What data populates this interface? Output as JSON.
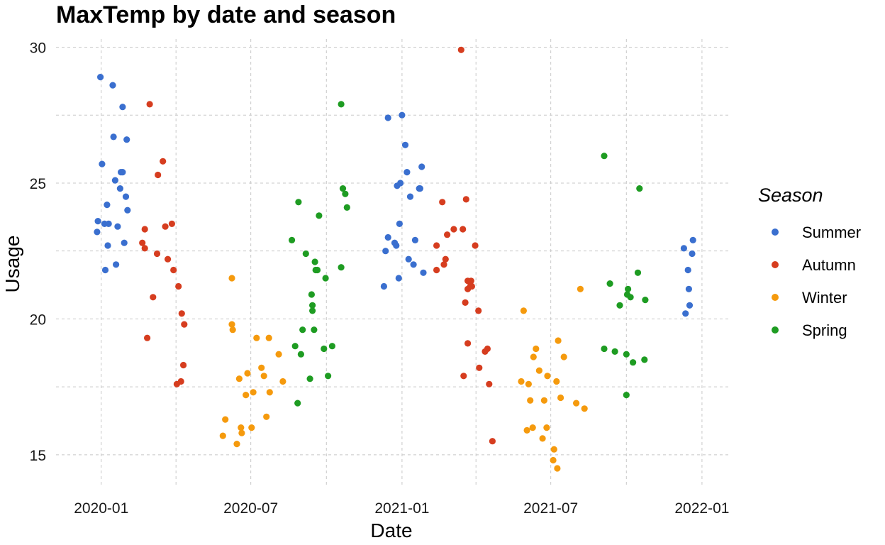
{
  "chart_data": {
    "type": "scatter",
    "title": "MaxTemp by date and season",
    "xlabel": "Date",
    "ylabel": "Usage",
    "x_type": "date",
    "xlim": [
      "2019-11-07",
      "2022-02-02"
    ],
    "ylim": [
      13.9,
      30.3
    ],
    "x_ticks": [
      "2020-01-01",
      "2020-07-01",
      "2021-01-01",
      "2021-07-01",
      "2022-01-01"
    ],
    "x_tick_labels": [
      "2020-01",
      "2020-07",
      "2021-01",
      "2021-07",
      "2022-01"
    ],
    "x_minor_ticks": [
      "2019-10-01",
      "2020-04-01",
      "2020-10-01",
      "2021-04-01",
      "2021-10-01"
    ],
    "y_ticks": [
      15,
      20,
      25,
      30
    ],
    "y_minor_ticks": [
      17.5,
      22.5,
      27.5
    ],
    "grid": true,
    "legend": {
      "title": "Season",
      "position": "right"
    },
    "series": [
      {
        "name": "Summer",
        "color": "#3a6fcf",
        "points": [
          [
            "2019-12-27",
            23.2
          ],
          [
            "2019-12-28",
            23.6
          ],
          [
            "2019-12-31",
            28.9
          ],
          [
            "2020-01-02",
            25.7
          ],
          [
            "2020-01-05",
            23.5
          ],
          [
            "2020-01-06",
            21.8
          ],
          [
            "2020-01-08",
            24.2
          ],
          [
            "2020-01-09",
            22.7
          ],
          [
            "2020-01-10",
            23.5
          ],
          [
            "2020-01-15",
            28.6
          ],
          [
            "2020-01-16",
            26.7
          ],
          [
            "2020-01-18",
            25.1
          ],
          [
            "2020-01-19",
            22.0
          ],
          [
            "2020-01-21",
            23.4
          ],
          [
            "2020-01-24",
            24.8
          ],
          [
            "2020-01-25",
            25.4
          ],
          [
            "2020-01-27",
            25.4
          ],
          [
            "2020-01-27",
            27.8
          ],
          [
            "2020-01-29",
            22.8
          ],
          [
            "2020-01-31",
            24.5
          ],
          [
            "2020-02-01",
            26.6
          ],
          [
            "2020-02-02",
            24.0
          ],
          [
            "2020-12-10",
            21.2
          ],
          [
            "2020-12-12",
            22.5
          ],
          [
            "2020-12-15",
            23.0
          ],
          [
            "2020-12-15",
            27.4
          ],
          [
            "2020-12-23",
            22.8
          ],
          [
            "2020-12-25",
            22.7
          ],
          [
            "2020-12-26",
            24.9
          ],
          [
            "2020-12-28",
            21.5
          ],
          [
            "2020-12-29",
            23.5
          ],
          [
            "2020-12-30",
            25.0
          ],
          [
            "2021-01-01",
            27.5
          ],
          [
            "2021-01-05",
            26.4
          ],
          [
            "2021-01-07",
            25.4
          ],
          [
            "2021-01-09",
            22.2
          ],
          [
            "2021-01-11",
            24.5
          ],
          [
            "2021-01-15",
            22.0
          ],
          [
            "2021-01-17",
            22.9
          ],
          [
            "2021-01-22",
            24.8
          ],
          [
            "2021-01-23",
            24.8
          ],
          [
            "2021-01-25",
            25.6
          ],
          [
            "2021-01-27",
            21.7
          ],
          [
            "2021-12-10",
            22.6
          ],
          [
            "2021-12-12",
            20.2
          ],
          [
            "2021-12-15",
            21.8
          ],
          [
            "2021-12-16",
            21.1
          ],
          [
            "2021-12-17",
            20.5
          ],
          [
            "2021-12-20",
            22.4
          ],
          [
            "2021-12-21",
            22.9
          ]
        ]
      },
      {
        "name": "Autumn",
        "color": "#d63d1f",
        "points": [
          [
            "2020-02-20",
            22.8
          ],
          [
            "2020-02-23",
            23.3
          ],
          [
            "2020-02-23",
            22.6
          ],
          [
            "2020-02-26",
            19.3
          ],
          [
            "2020-02-29",
            27.9
          ],
          [
            "2020-03-04",
            20.8
          ],
          [
            "2020-03-09",
            22.4
          ],
          [
            "2020-03-10",
            25.3
          ],
          [
            "2020-03-16",
            25.8
          ],
          [
            "2020-03-19",
            23.4
          ],
          [
            "2020-03-22",
            22.2
          ],
          [
            "2020-03-27",
            23.5
          ],
          [
            "2020-03-29",
            21.8
          ],
          [
            "2020-04-02",
            17.6
          ],
          [
            "2020-04-04",
            21.2
          ],
          [
            "2020-04-07",
            17.7
          ],
          [
            "2020-04-08",
            20.2
          ],
          [
            "2020-04-10",
            18.3
          ],
          [
            "2020-04-11",
            19.8
          ],
          [
            "2021-02-12",
            22.7
          ],
          [
            "2021-02-12",
            21.8
          ],
          [
            "2021-02-19",
            24.3
          ],
          [
            "2021-02-21",
            22.0
          ],
          [
            "2021-02-23",
            22.2
          ],
          [
            "2021-02-25",
            23.1
          ],
          [
            "2021-03-05",
            23.3
          ],
          [
            "2021-03-14",
            29.9
          ],
          [
            "2021-03-16",
            23.3
          ],
          [
            "2021-03-17",
            17.9
          ],
          [
            "2021-03-19",
            20.6
          ],
          [
            "2021-03-20",
            24.4
          ],
          [
            "2021-03-22",
            19.1
          ],
          [
            "2021-03-22",
            21.1
          ],
          [
            "2021-03-22",
            21.4
          ],
          [
            "2021-03-25",
            21.2
          ],
          [
            "2021-03-26",
            21.4
          ],
          [
            "2021-03-27",
            21.2
          ],
          [
            "2021-03-31",
            22.7
          ],
          [
            "2021-04-04",
            20.3
          ],
          [
            "2021-04-05",
            18.2
          ],
          [
            "2021-04-12",
            18.8
          ],
          [
            "2021-04-15",
            18.9
          ],
          [
            "2021-04-17",
            17.6
          ],
          [
            "2021-04-21",
            15.5
          ]
        ]
      },
      {
        "name": "Winter",
        "color": "#f59a0d",
        "points": [
          [
            "2020-05-28",
            15.7
          ],
          [
            "2020-05-31",
            16.3
          ],
          [
            "2020-06-08",
            19.8
          ],
          [
            "2020-06-08",
            21.5
          ],
          [
            "2020-06-09",
            19.6
          ],
          [
            "2020-06-14",
            15.4
          ],
          [
            "2020-06-17",
            17.8
          ],
          [
            "2020-06-19",
            16.0
          ],
          [
            "2020-06-20",
            15.8
          ],
          [
            "2020-06-25",
            17.2
          ],
          [
            "2020-06-27",
            18.0
          ],
          [
            "2020-07-02",
            16.0
          ],
          [
            "2020-07-04",
            17.3
          ],
          [
            "2020-07-08",
            19.3
          ],
          [
            "2020-07-14",
            18.2
          ],
          [
            "2020-07-17",
            17.9
          ],
          [
            "2020-07-20",
            16.4
          ],
          [
            "2020-07-23",
            19.3
          ],
          [
            "2020-07-24",
            17.3
          ],
          [
            "2020-08-04",
            18.7
          ],
          [
            "2020-08-09",
            17.7
          ],
          [
            "2021-05-26",
            17.7
          ],
          [
            "2021-05-29",
            20.3
          ],
          [
            "2021-06-02",
            15.9
          ],
          [
            "2021-06-04",
            17.6
          ],
          [
            "2021-06-06",
            17.0
          ],
          [
            "2021-06-09",
            16.0
          ],
          [
            "2021-06-10",
            18.6
          ],
          [
            "2021-06-13",
            18.9
          ],
          [
            "2021-06-17",
            18.1
          ],
          [
            "2021-06-21",
            15.6
          ],
          [
            "2021-06-23",
            17.0
          ],
          [
            "2021-06-26",
            16.0
          ],
          [
            "2021-06-27",
            17.9
          ],
          [
            "2021-07-04",
            14.8
          ],
          [
            "2021-07-05",
            15.2
          ],
          [
            "2021-07-08",
            17.7
          ],
          [
            "2021-07-09",
            14.5
          ],
          [
            "2021-07-10",
            19.2
          ],
          [
            "2021-07-13",
            17.1
          ],
          [
            "2021-07-17",
            18.6
          ],
          [
            "2021-08-01",
            16.9
          ],
          [
            "2021-08-06",
            21.1
          ],
          [
            "2021-08-11",
            16.7
          ]
        ]
      },
      {
        "name": "Spring",
        "color": "#1e9c22",
        "points": [
          [
            "2020-08-20",
            22.9
          ],
          [
            "2020-08-24",
            19.0
          ],
          [
            "2020-08-27",
            16.9
          ],
          [
            "2020-08-28",
            24.3
          ],
          [
            "2020-08-31",
            18.7
          ],
          [
            "2020-09-02",
            19.6
          ],
          [
            "2020-09-06",
            22.4
          ],
          [
            "2020-09-11",
            17.8
          ],
          [
            "2020-09-13",
            20.9
          ],
          [
            "2020-09-14",
            20.3
          ],
          [
            "2020-09-14",
            20.5
          ],
          [
            "2020-09-16",
            19.6
          ],
          [
            "2020-09-17",
            22.1
          ],
          [
            "2020-09-18",
            21.8
          ],
          [
            "2020-09-20",
            21.8
          ],
          [
            "2020-09-22",
            23.8
          ],
          [
            "2020-09-28",
            18.9
          ],
          [
            "2020-09-30",
            21.5
          ],
          [
            "2020-10-03",
            17.9
          ],
          [
            "2020-10-08",
            19.0
          ],
          [
            "2020-10-19",
            21.9
          ],
          [
            "2020-10-19",
            27.9
          ],
          [
            "2020-10-21",
            24.8
          ],
          [
            "2020-10-24",
            24.6
          ],
          [
            "2020-10-26",
            24.1
          ],
          [
            "2021-09-04",
            26.0
          ],
          [
            "2021-09-04",
            18.9
          ],
          [
            "2021-09-11",
            21.3
          ],
          [
            "2021-09-17",
            18.8
          ],
          [
            "2021-09-23",
            20.5
          ],
          [
            "2021-10-01",
            18.7
          ],
          [
            "2021-10-01",
            17.2
          ],
          [
            "2021-10-02",
            20.9
          ],
          [
            "2021-10-03",
            21.1
          ],
          [
            "2021-10-06",
            20.8
          ],
          [
            "2021-10-09",
            18.4
          ],
          [
            "2021-10-15",
            21.7
          ],
          [
            "2021-10-17",
            24.8
          ],
          [
            "2021-10-23",
            18.5
          ],
          [
            "2021-10-24",
            20.7
          ]
        ]
      }
    ]
  }
}
